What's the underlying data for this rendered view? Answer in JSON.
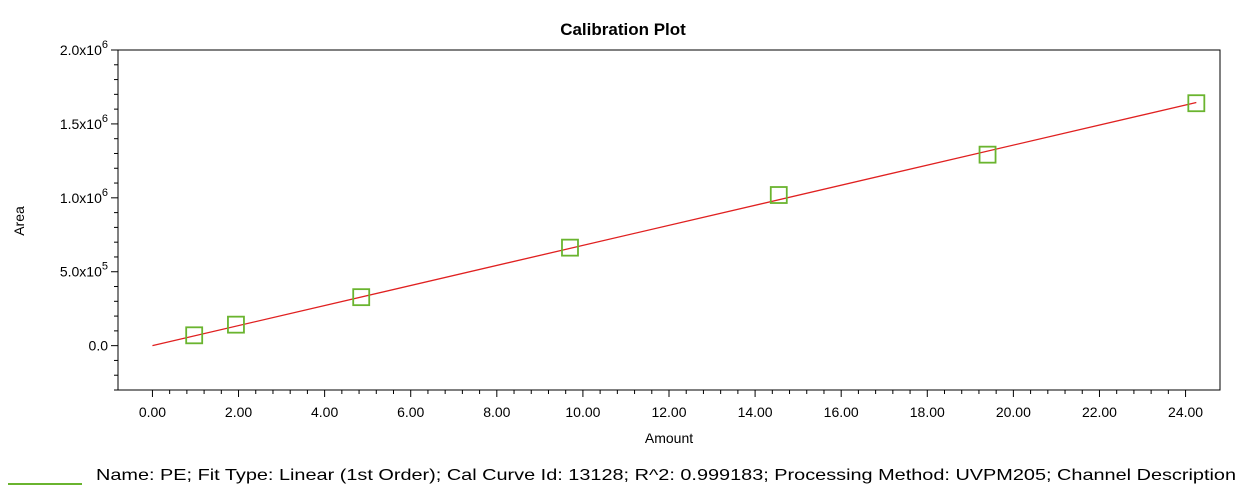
{
  "chart_data": {
    "type": "scatter",
    "title": "Calibration Plot",
    "xlabel": "Amount",
    "ylabel": "Area",
    "xlim": [
      -0.8,
      24.8
    ],
    "ylim": [
      -300000,
      2000000
    ],
    "x_ticks": [
      {
        "value": 0,
        "label": "0.00"
      },
      {
        "value": 2,
        "label": "2.00"
      },
      {
        "value": 4,
        "label": "4.00"
      },
      {
        "value": 6,
        "label": "6.00"
      },
      {
        "value": 8,
        "label": "8.00"
      },
      {
        "value": 10,
        "label": "10.00"
      },
      {
        "value": 12,
        "label": "12.00"
      },
      {
        "value": 14,
        "label": "14.00"
      },
      {
        "value": 16,
        "label": "16.00"
      },
      {
        "value": 18,
        "label": "18.00"
      },
      {
        "value": 20,
        "label": "20.00"
      },
      {
        "value": 22,
        "label": "22.00"
      },
      {
        "value": 24,
        "label": "24.00"
      }
    ],
    "y_ticks": [
      {
        "value": 0,
        "mantissa": "0.0",
        "exp": ""
      },
      {
        "value": 500000,
        "mantissa": "5.0x10",
        "exp": "5"
      },
      {
        "value": 1000000,
        "mantissa": "1.0x10",
        "exp": "6"
      },
      {
        "value": 1500000,
        "mantissa": "1.5x10",
        "exp": "6"
      },
      {
        "value": 2000000,
        "mantissa": "2.0x10",
        "exp": "6"
      }
    ],
    "points": [
      {
        "x": 0.97,
        "y": 70000
      },
      {
        "x": 1.94,
        "y": 142000
      },
      {
        "x": 4.85,
        "y": 328000
      },
      {
        "x": 9.7,
        "y": 663000
      },
      {
        "x": 14.55,
        "y": 1019000
      },
      {
        "x": 19.4,
        "y": 1292000
      },
      {
        "x": 24.25,
        "y": 1640000
      }
    ],
    "fit_line": {
      "x": [
        0.0,
        24.25
      ],
      "y": [
        0,
        1645000
      ]
    },
    "grid": false,
    "legend": {
      "placement": "bottom",
      "text": "Name: PE;   Fit Type: Linear (1st Order);   Cal Curve Id: 13128;   R^2: 0.999183;   Processing Method: UVPM205; Channel Description"
    },
    "colors": {
      "points": "#6ab42f",
      "fit_line": "#e02020",
      "legend_line": "#6ab42f"
    }
  }
}
